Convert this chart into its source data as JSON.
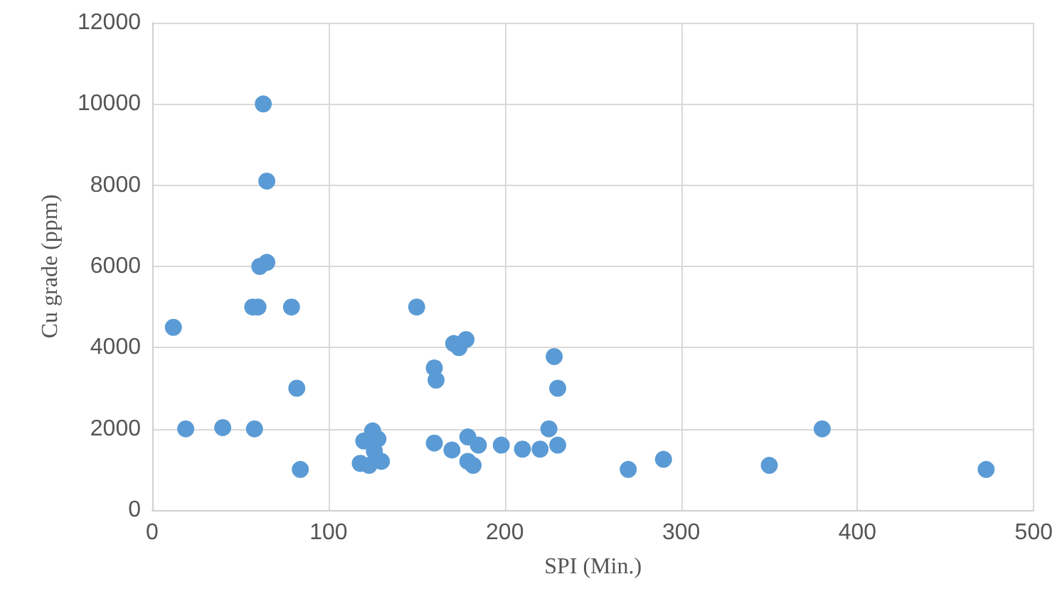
{
  "chart_data": {
    "type": "scatter",
    "xlabel": "SPI (Min.)",
    "ylabel": "Cu grade (ppm)",
    "x": [
      63,
      65,
      61,
      65,
      57,
      60,
      79,
      12,
      82,
      19,
      40,
      58,
      84,
      125,
      120,
      128,
      126,
      118,
      123,
      130,
      160,
      170,
      179,
      185,
      179,
      182,
      198,
      210,
      220,
      225,
      230,
      230,
      228,
      150,
      160,
      161,
      171,
      174,
      178,
      270,
      290,
      350,
      380,
      473
    ],
    "series": [
      {
        "color": "#5b9bd5",
        "values": [
          10000,
          8100,
          6000,
          6100,
          5000,
          5000,
          5000,
          4500,
          3000,
          2000,
          2030,
          2000,
          1000,
          1950,
          1700,
          1750,
          1450,
          1150,
          1100,
          1200,
          1650,
          1480,
          1800,
          1600,
          1200,
          1100,
          1600,
          1500,
          1500,
          2000,
          1600,
          3000,
          3780,
          5000,
          3500,
          3200,
          4100,
          4000,
          4200,
          1000,
          1250,
          1100,
          2000,
          1000
        ]
      }
    ],
    "xlim": [
      0,
      500
    ],
    "xticks": [
      0,
      100,
      200,
      300,
      400,
      500
    ],
    "ylim": [
      0,
      12000
    ],
    "yticks": [
      0,
      2000,
      4000,
      6000,
      8000,
      10000,
      12000
    ],
    "grid": true,
    "marker": "circle"
  }
}
